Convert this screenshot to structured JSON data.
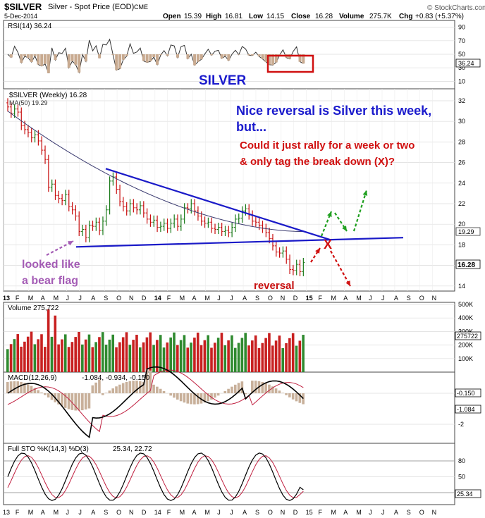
{
  "header": {
    "symbol": "$SILVER",
    "name": "Silver - Spot Price (EOD)",
    "exchange": "CME",
    "date": "5-Dec-2014",
    "open_label": "Open",
    "open": "15.39",
    "high_label": "High",
    "high": "16.81",
    "low_label": "Low",
    "low": "14.15",
    "close_label": "Close",
    "close": "16.28",
    "volume_label": "Volume",
    "volume": "275.7K",
    "chg_label": "Chg",
    "chg": "+0.83 (+5.37%)",
    "brand": "© StockCharts.com"
  },
  "colors": {
    "price_up": "#2b6fd6",
    "price_down": "#c81010",
    "price_bar": "#1a7a1a",
    "vol_up": "#2f8a2f",
    "vol_down": "#c82020",
    "trendline": "#1a1ac8",
    "annotation_blue": "#1a1acc",
    "annotation_red": "#d01010",
    "annotation_purple": "#a45cb5",
    "arrow_green": "#20a020",
    "ma": "#3b3b70",
    "macd_line": "#000000",
    "signal_line": "#c02040",
    "hist": "#c8b09a"
  },
  "rsi": {
    "label": "RSI(14) 36.24",
    "current": "36.24",
    "ticks": [
      "90",
      "70",
      "50",
      "30",
      "10"
    ]
  },
  "price": {
    "title": "$SILVER (Weekly) 16.28",
    "ma_label": "MA(50) 19.29",
    "ma_value": "19.29",
    "close_value": "16.28",
    "ticks": [
      "32",
      "30",
      "28",
      "26",
      "24",
      "22",
      "20",
      "18",
      "16",
      "14"
    ]
  },
  "annotations": {
    "silver": "SILVER",
    "headline1": "Nice reversal is Silver this week,",
    "headline2": "but...",
    "question1": "Could it just rally for a week or two",
    "question2": "& only tag the break down (X)?",
    "bear1": "looked like",
    "bear2": "a bear flag",
    "reversal": "reversal",
    "x_mark": "X"
  },
  "xaxis": {
    "main_labels": [
      "13",
      "F",
      "M",
      "A",
      "M",
      "J",
      "J",
      "A",
      "S",
      "O",
      "N",
      "D",
      "14",
      "F",
      "M",
      "A",
      "M",
      "J",
      "J",
      "A",
      "S",
      "O",
      "N",
      "D",
      "15",
      "F",
      "M",
      "A",
      "M",
      "J",
      "J",
      "A",
      "S",
      "O",
      "N"
    ],
    "bottom_labels": [
      "13",
      "F",
      "M",
      "A",
      "M",
      "J",
      "J",
      "A",
      "S",
      "O",
      "N",
      "D",
      "14",
      "F",
      "M",
      "A",
      "M",
      "J",
      "J",
      "A",
      "S",
      "O",
      "N",
      "D",
      "15",
      "F",
      "M",
      "A",
      "M",
      "J",
      "J",
      "A",
      "S",
      "O",
      "N"
    ]
  },
  "volume": {
    "label": "Volume 275,722",
    "current": "275722",
    "ticks": [
      "500K",
      "400K",
      "300K",
      "200K",
      "100K"
    ]
  },
  "macd": {
    "label": "MACD(12,26,9)",
    "values": "-1.084, -0.934, -0.150",
    "hist_value": "-0.150",
    "macd_value": "-1.084",
    "ticks": [
      "0",
      "-2"
    ]
  },
  "sto": {
    "label": "Full STO %K(14,3) %D(3)",
    "values": "25.34, 22.72",
    "current": "25.34",
    "ticks": [
      "80",
      "50",
      "20"
    ]
  },
  "chart_data": {
    "type": "line",
    "title": "$SILVER (Weekly)",
    "x_start": "Jan 2013",
    "x_end": "Dec 2014",
    "weekly_close": [
      31.4,
      30.8,
      31.2,
      30.9,
      29.6,
      29.2,
      28.9,
      28.4,
      28.7,
      28.1,
      27.2,
      26.3,
      23.6,
      23.9,
      22.8,
      22.5,
      22.3,
      22.9,
      21.7,
      21.4,
      20.8,
      19.3,
      19.5,
      18.7,
      19.9,
      19.8,
      20.2,
      19.4,
      20.3,
      21.4,
      24.2,
      24.6,
      23.4,
      22.2,
      21.7,
      21.3,
      22.0,
      21.6,
      21.4,
      21.8,
      21.1,
      20.5,
      20.2,
      20.4,
      19.7,
      19.8,
      20.1,
      19.6,
      20.1,
      20.5,
      19.8,
      20.5,
      21.6,
      21.5,
      22.0,
      21.3,
      20.8,
      20.3,
      20.1,
      20.2,
      19.6,
      19.5,
      19.7,
      19.3,
      19.4,
      19.2,
      19.7,
      20.5,
      20.6,
      21.3,
      21.5,
      20.9,
      20.3,
      20.2,
      19.9,
      19.6,
      19.2,
      18.6,
      17.9,
      17.3,
      17.2,
      17.4,
      16.6,
      15.6,
      15.5,
      16.1,
      15.4,
      16.28
    ],
    "ma50_start": 31.0,
    "ma50_end": 19.29,
    "ylim": [
      13.5,
      32.5
    ],
    "rsi_last": 36.24,
    "volume_last": 275722,
    "macd": [
      -1.084,
      -0.934,
      -0.15
    ],
    "stochastic": [
      25.34,
      22.72
    ]
  }
}
